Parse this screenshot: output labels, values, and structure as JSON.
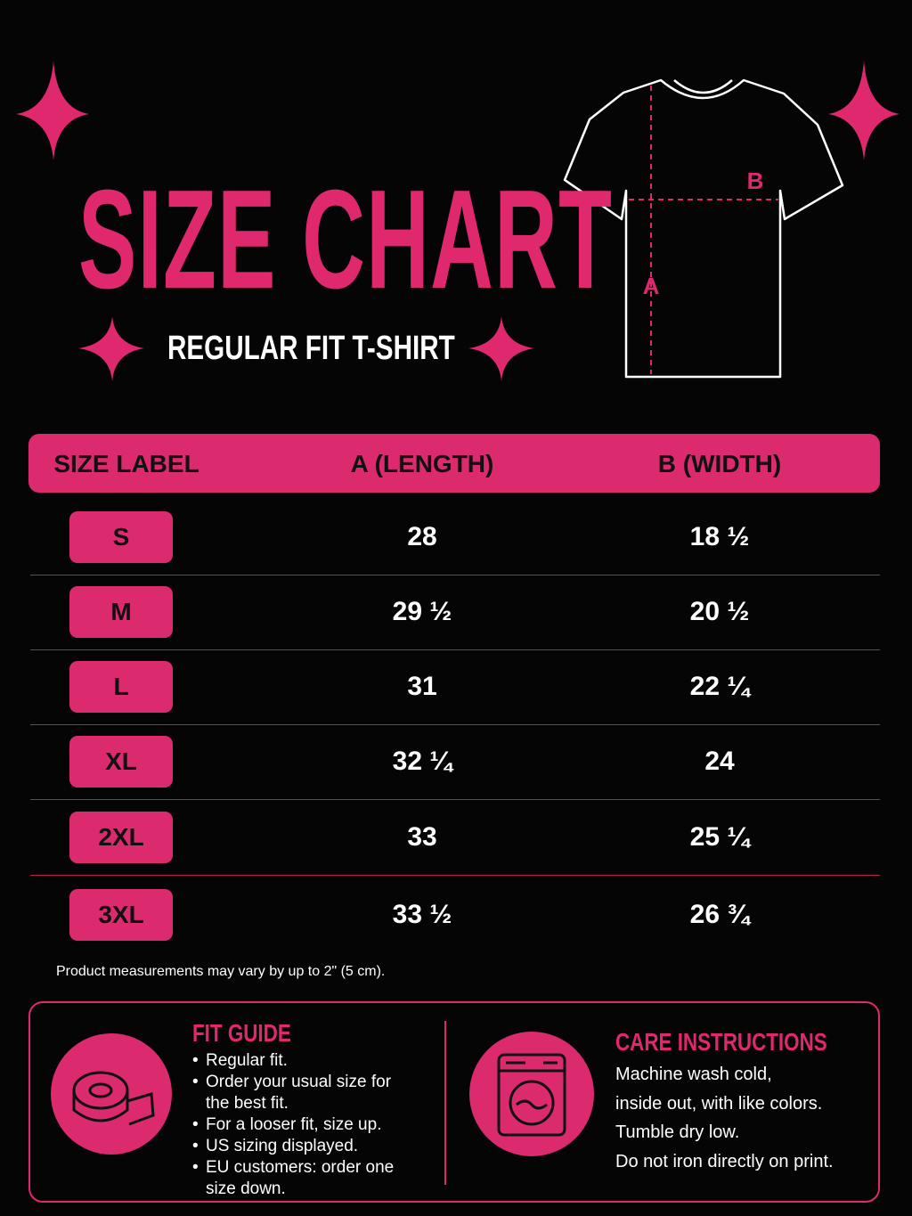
{
  "header": {
    "title": "SIZE CHART",
    "subtitle": "REGULAR FIT T-SHIRT"
  },
  "diagram": {
    "length_label": "A",
    "width_label": "B"
  },
  "table": {
    "columns": [
      "SIZE LABEL",
      "A (LENGTH)",
      "B (WIDTH)"
    ],
    "rows": [
      [
        "S",
        "28",
        "18 ½"
      ],
      [
        "M",
        "29 ½",
        "20 ½"
      ],
      [
        "L",
        "31",
        "22 ¼"
      ],
      [
        "XL",
        "32 ¼",
        "24"
      ],
      [
        "2XL",
        "33",
        "25 ¼"
      ],
      [
        "3XL",
        "33 ½",
        "26 ¾"
      ]
    ]
  },
  "note": "Product measurements may vary by up to 2\" (5 cm).",
  "fit_guide": {
    "title": "FIT GUIDE",
    "items": [
      "Regular fit.",
      "Order your usual size for the best fit.",
      "For a looser fit, size up.",
      "US sizing displayed.",
      "EU customers: order one size down."
    ]
  },
  "care": {
    "title": "CARE INSTRUCTIONS",
    "lines": [
      "Machine wash cold,",
      "inside out, with like colors.",
      "Tumble dry low.",
      "Do not iron directly on print."
    ]
  }
}
